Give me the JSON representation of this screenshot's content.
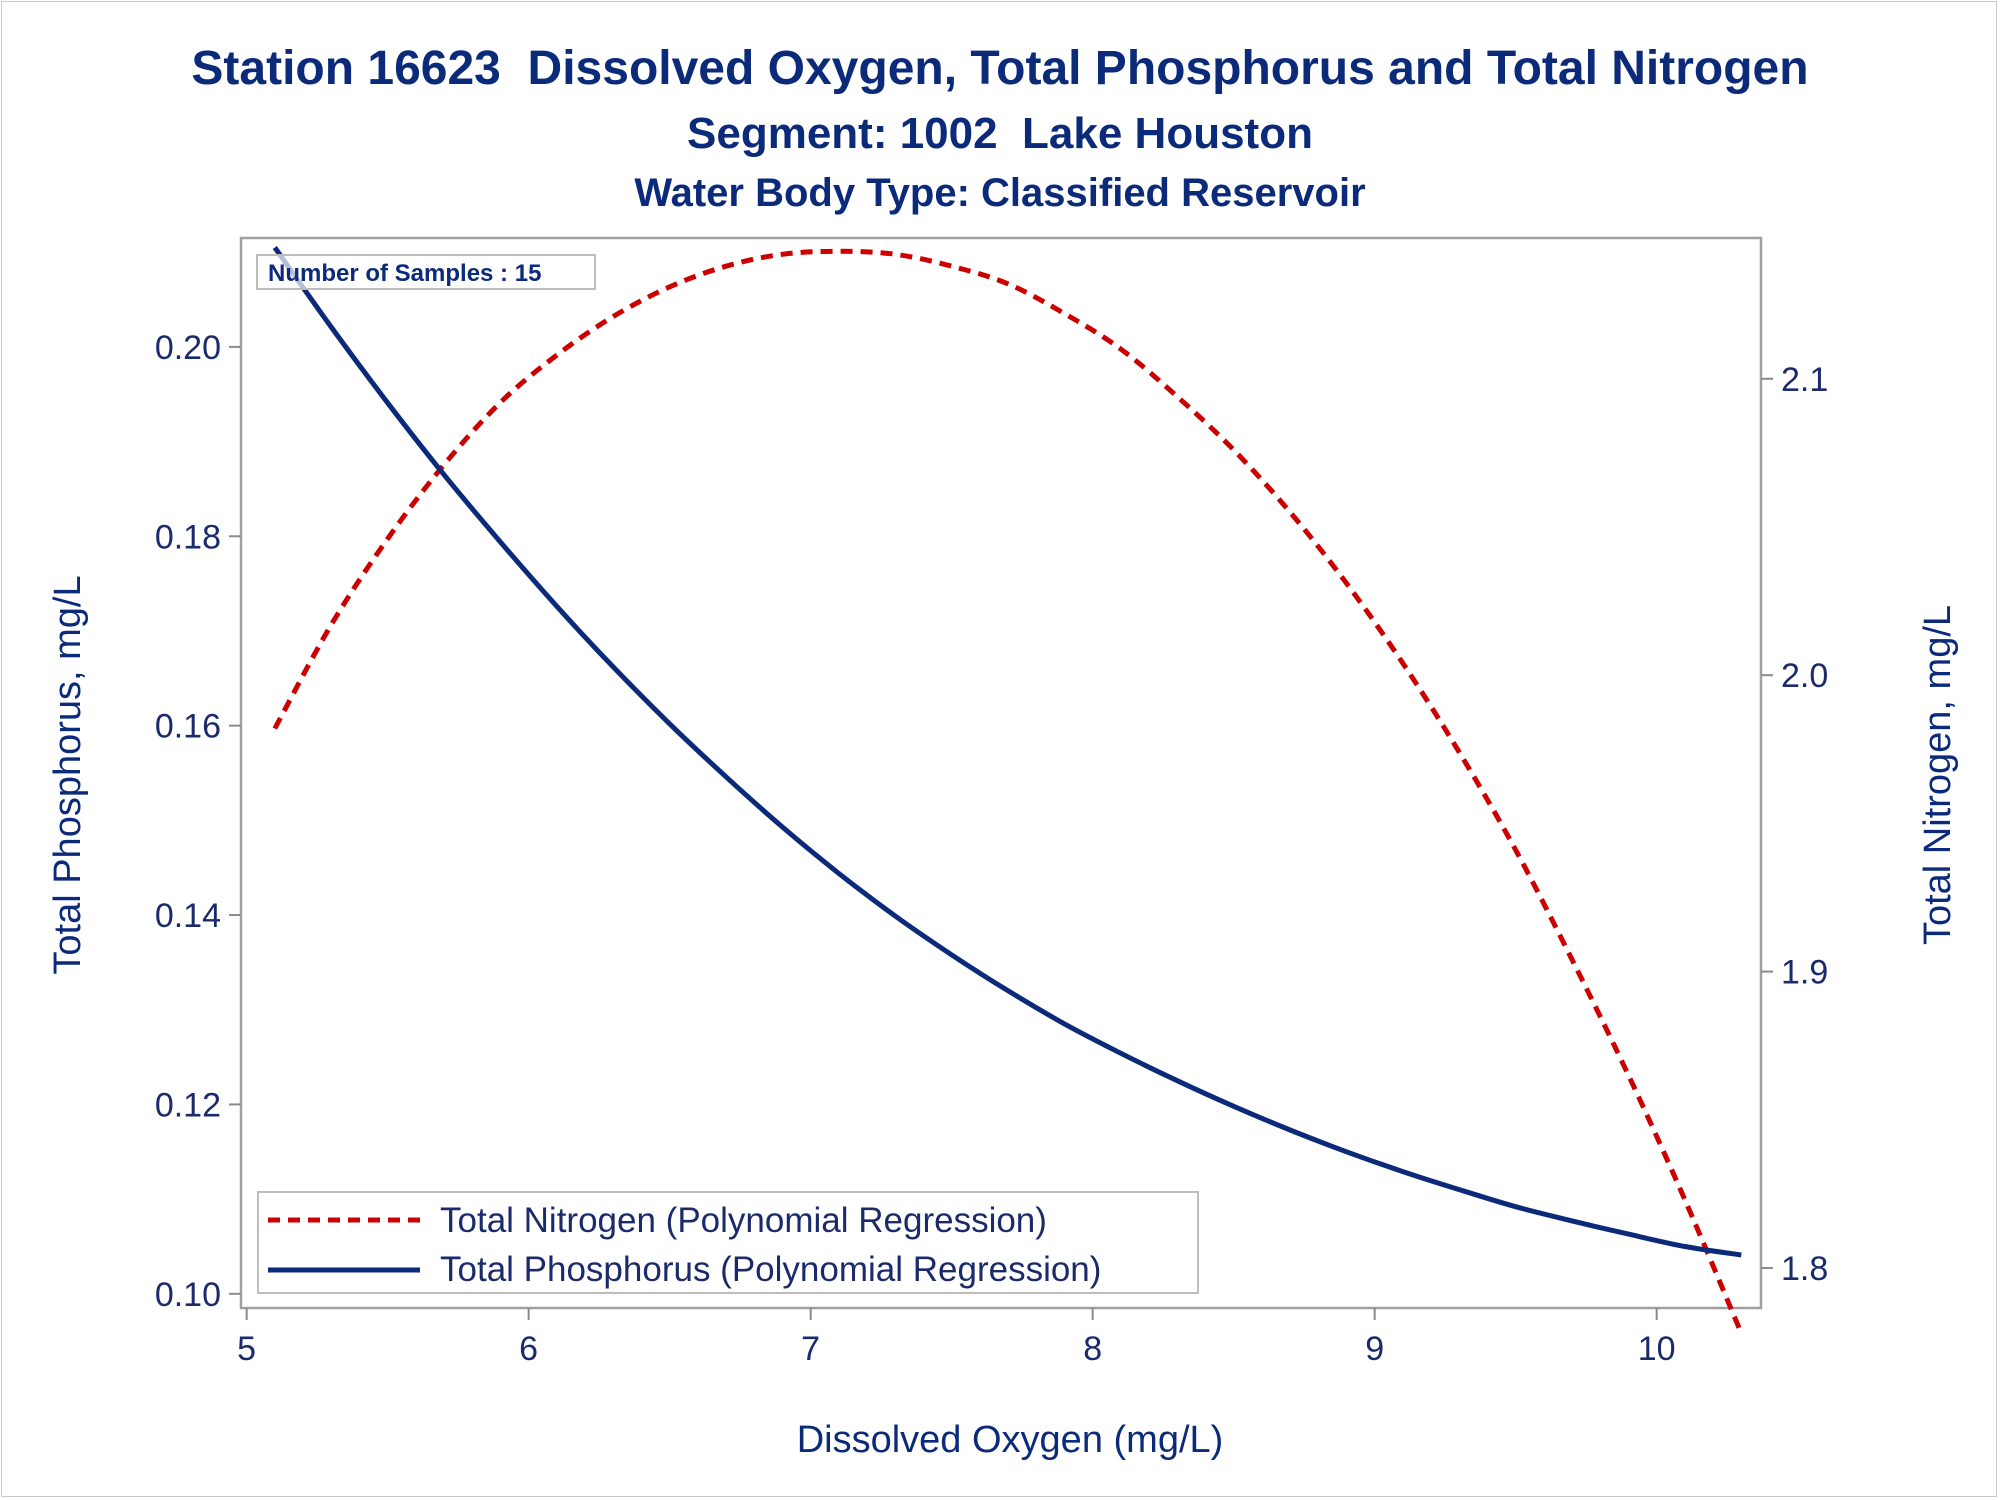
{
  "chart_data": {
    "type": "line",
    "title": "Station 16623  Dissolved Oxygen, Total Phosphorus and Total Nitrogen",
    "subtitle": "Segment: 1002  Lake Houston",
    "subtitle2": "Water Body Type: Classified Reservoir",
    "annotation": "Number of Samples : 15",
    "xlabel": "Dissolved Oxygen (mg/L)",
    "ylabel_left": "Total Phosphorus, mg/L",
    "ylabel_right": "Total Nitrogen, mg/L",
    "xlim": [
      4.98,
      10.37
    ],
    "ylim_left": [
      0.0985,
      0.2115
    ],
    "ylim_right": [
      1.7865,
      2.1475
    ],
    "x_ticks": [
      "5",
      "6",
      "7",
      "8",
      "9",
      "10"
    ],
    "y_left_ticks": [
      "0.10",
      "0.12",
      "0.14",
      "0.16",
      "0.18",
      "0.20"
    ],
    "y_right_ticks": [
      "1.8",
      "1.9",
      "2.0",
      "2.1"
    ],
    "grid": false,
    "legend_position": "bottom-left",
    "series": [
      {
        "name": "Total Nitrogen (Polynomial Regression)",
        "axis": "right",
        "color": "#cc0000",
        "style": "dashed",
        "x": [
          5.1,
          5.3,
          5.5,
          5.7,
          5.9,
          6.1,
          6.3,
          6.5,
          6.7,
          6.9,
          7.1,
          7.3,
          7.5,
          7.7,
          7.9,
          8.1,
          8.3,
          8.5,
          8.7,
          8.9,
          9.1,
          9.3,
          9.5,
          9.7,
          9.9,
          10.1,
          10.3
        ],
        "y": [
          1.982,
          2.017,
          2.046,
          2.071,
          2.092,
          2.108,
          2.121,
          2.131,
          2.138,
          2.142,
          2.143,
          2.142,
          2.138,
          2.132,
          2.122,
          2.11,
          2.094,
          2.076,
          2.055,
          2.031,
          2.004,
          1.974,
          1.941,
          1.904,
          1.865,
          1.823,
          1.778
        ]
      },
      {
        "name": "Total Phosphorus (Polynomial Regression)",
        "axis": "left",
        "color": "#0b2a7a",
        "style": "solid",
        "x": [
          5.1,
          5.3,
          5.5,
          5.7,
          5.9,
          6.1,
          6.3,
          6.5,
          6.7,
          6.9,
          7.1,
          7.3,
          7.5,
          7.7,
          7.9,
          8.1,
          8.3,
          8.5,
          8.7,
          8.9,
          9.1,
          9.3,
          9.5,
          9.7,
          9.9,
          10.1,
          10.3
        ],
        "y": [
          0.2105,
          0.2021,
          0.1941,
          0.1865,
          0.1794,
          0.1726,
          0.1662,
          0.1602,
          0.1546,
          0.1493,
          0.1444,
          0.1399,
          0.1358,
          0.132,
          0.1285,
          0.1254,
          0.1225,
          0.1198,
          0.1173,
          0.115,
          0.1129,
          0.111,
          0.1092,
          0.1077,
          0.1063,
          0.105,
          0.1041
        ]
      }
    ]
  }
}
